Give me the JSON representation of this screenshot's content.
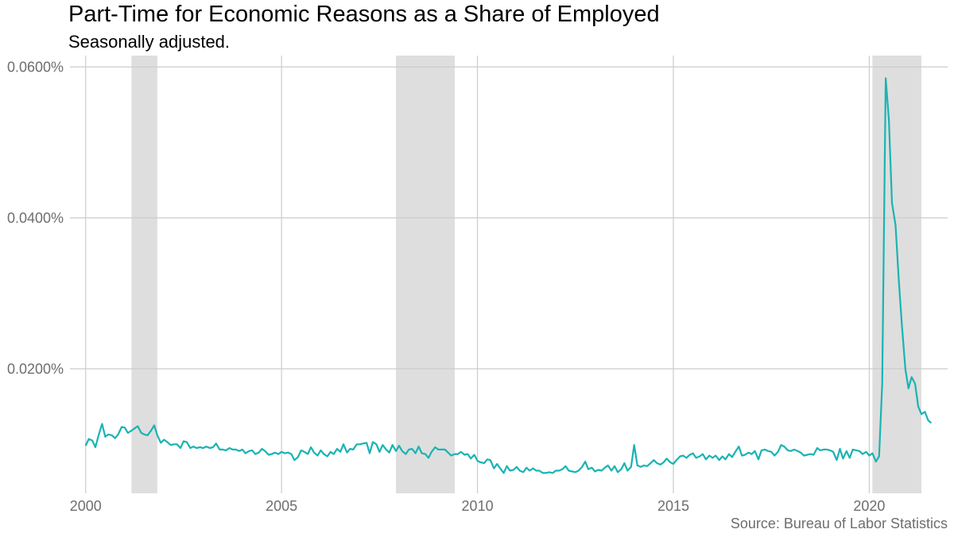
{
  "chart_data": {
    "type": "line",
    "title": "Part-Time for Economic Reasons as a Share of Employed",
    "subtitle": "Seasonally adjusted.",
    "caption": "Source: Bureau of Labor Statistics",
    "xlabel": "",
    "ylabel": "",
    "xlim": [
      1999.6,
      2022.0
    ],
    "ylim": [
      0.0035,
      0.0615
    ],
    "x_ticks": [
      2000,
      2005,
      2010,
      2015,
      2020
    ],
    "y_ticks": [
      0.02,
      0.04,
      0.06
    ],
    "y_tick_labels": [
      "0.0200%",
      "0.0400%",
      "0.0600%"
    ],
    "grid": true,
    "recession_shading": [
      [
        2001.17,
        2001.83
      ],
      [
        2007.92,
        2009.42
      ],
      [
        2020.08,
        2021.33
      ]
    ],
    "series": [
      {
        "color": "#1ab3b3",
        "points": [
          [
            2000.0,
            0.0098
          ],
          [
            2000.08,
            0.0107
          ],
          [
            2000.17,
            0.0105
          ],
          [
            2000.25,
            0.0096
          ],
          [
            2000.33,
            0.0112
          ],
          [
            2000.42,
            0.0127
          ],
          [
            2000.5,
            0.011
          ],
          [
            2000.58,
            0.0113
          ],
          [
            2000.67,
            0.0112
          ],
          [
            2000.75,
            0.0108
          ],
          [
            2000.83,
            0.0113
          ],
          [
            2000.92,
            0.0123
          ],
          [
            2001.0,
            0.0122
          ],
          [
            2001.08,
            0.0115
          ],
          [
            2001.17,
            0.0118
          ],
          [
            2001.25,
            0.0121
          ],
          [
            2001.33,
            0.0124
          ],
          [
            2001.42,
            0.0115
          ],
          [
            2001.5,
            0.0113
          ],
          [
            2001.58,
            0.0112
          ],
          [
            2001.67,
            0.0118
          ],
          [
            2001.75,
            0.0125
          ],
          [
            2001.83,
            0.0112
          ],
          [
            2001.92,
            0.0102
          ],
          [
            2002.0,
            0.0106
          ],
          [
            2002.08,
            0.0103
          ],
          [
            2002.17,
            0.0099
          ],
          [
            2002.25,
            0.01
          ],
          [
            2002.33,
            0.01
          ],
          [
            2002.42,
            0.0095
          ],
          [
            2002.5,
            0.0104
          ],
          [
            2002.58,
            0.0103
          ],
          [
            2002.67,
            0.0095
          ],
          [
            2002.75,
            0.0097
          ],
          [
            2002.83,
            0.0095
          ],
          [
            2002.92,
            0.0096
          ],
          [
            2003.0,
            0.0095
          ],
          [
            2003.08,
            0.0097
          ],
          [
            2003.17,
            0.0095
          ],
          [
            2003.25,
            0.0096
          ],
          [
            2003.33,
            0.0101
          ],
          [
            2003.42,
            0.0093
          ],
          [
            2003.5,
            0.0093
          ],
          [
            2003.58,
            0.0092
          ],
          [
            2003.67,
            0.0095
          ],
          [
            2003.75,
            0.0093
          ],
          [
            2003.83,
            0.0093
          ],
          [
            2003.92,
            0.0091
          ],
          [
            2004.0,
            0.0093
          ],
          [
            2004.08,
            0.0088
          ],
          [
            2004.17,
            0.0091
          ],
          [
            2004.25,
            0.0092
          ],
          [
            2004.33,
            0.0087
          ],
          [
            2004.42,
            0.0089
          ],
          [
            2004.5,
            0.0094
          ],
          [
            2004.58,
            0.0091
          ],
          [
            2004.67,
            0.0086
          ],
          [
            2004.75,
            0.0087
          ],
          [
            2004.83,
            0.0089
          ],
          [
            2004.92,
            0.0087
          ],
          [
            2005.0,
            0.009
          ],
          [
            2005.08,
            0.0088
          ],
          [
            2005.17,
            0.0089
          ],
          [
            2005.25,
            0.0087
          ],
          [
            2005.33,
            0.0079
          ],
          [
            2005.42,
            0.0083
          ],
          [
            2005.5,
            0.0092
          ],
          [
            2005.58,
            0.009
          ],
          [
            2005.67,
            0.0087
          ],
          [
            2005.75,
            0.0096
          ],
          [
            2005.83,
            0.0089
          ],
          [
            2005.92,
            0.0085
          ],
          [
            2006.0,
            0.0092
          ],
          [
            2006.08,
            0.0087
          ],
          [
            2006.17,
            0.0084
          ],
          [
            2006.25,
            0.009
          ],
          [
            2006.33,
            0.0087
          ],
          [
            2006.42,
            0.0094
          ],
          [
            2006.5,
            0.009
          ],
          [
            2006.58,
            0.01
          ],
          [
            2006.67,
            0.0089
          ],
          [
            2006.75,
            0.0094
          ],
          [
            2006.83,
            0.0093
          ],
          [
            2006.92,
            0.01
          ],
          [
            2007.0,
            0.01
          ],
          [
            2007.08,
            0.0101
          ],
          [
            2007.17,
            0.0102
          ],
          [
            2007.25,
            0.0088
          ],
          [
            2007.33,
            0.0103
          ],
          [
            2007.42,
            0.01
          ],
          [
            2007.5,
            0.009
          ],
          [
            2007.58,
            0.0099
          ],
          [
            2007.67,
            0.0093
          ],
          [
            2007.75,
            0.0089
          ],
          [
            2007.83,
            0.0099
          ],
          [
            2007.92,
            0.0091
          ],
          [
            2008.0,
            0.0098
          ],
          [
            2008.08,
            0.0091
          ],
          [
            2008.17,
            0.0087
          ],
          [
            2008.25,
            0.0093
          ],
          [
            2008.33,
            0.0094
          ],
          [
            2008.42,
            0.0088
          ],
          [
            2008.5,
            0.0097
          ],
          [
            2008.58,
            0.0088
          ],
          [
            2008.67,
            0.0087
          ],
          [
            2008.75,
            0.0082
          ],
          [
            2008.83,
            0.009
          ],
          [
            2008.92,
            0.0096
          ],
          [
            2009.0,
            0.0093
          ],
          [
            2009.08,
            0.0093
          ],
          [
            2009.17,
            0.0093
          ],
          [
            2009.25,
            0.0089
          ],
          [
            2009.33,
            0.0085
          ],
          [
            2009.42,
            0.0087
          ],
          [
            2009.5,
            0.0087
          ],
          [
            2009.58,
            0.009
          ],
          [
            2009.67,
            0.0086
          ],
          [
            2009.75,
            0.0087
          ],
          [
            2009.83,
            0.0081
          ],
          [
            2009.92,
            0.0086
          ],
          [
            2010.0,
            0.0078
          ],
          [
            2010.08,
            0.0076
          ],
          [
            2010.17,
            0.0075
          ],
          [
            2010.25,
            0.008
          ],
          [
            2010.33,
            0.0079
          ],
          [
            2010.42,
            0.0068
          ],
          [
            2010.5,
            0.0074
          ],
          [
            2010.58,
            0.0068
          ],
          [
            2010.67,
            0.0062
          ],
          [
            2010.75,
            0.0071
          ],
          [
            2010.83,
            0.0065
          ],
          [
            2010.92,
            0.0066
          ],
          [
            2011.0,
            0.007
          ],
          [
            2011.08,
            0.0065
          ],
          [
            2011.17,
            0.0063
          ],
          [
            2011.25,
            0.0069
          ],
          [
            2011.33,
            0.0065
          ],
          [
            2011.42,
            0.0068
          ],
          [
            2011.5,
            0.0065
          ],
          [
            2011.58,
            0.0065
          ],
          [
            2011.67,
            0.0062
          ],
          [
            2011.75,
            0.0062
          ],
          [
            2011.83,
            0.0063
          ],
          [
            2011.92,
            0.0062
          ],
          [
            2012.0,
            0.0065
          ],
          [
            2012.08,
            0.0065
          ],
          [
            2012.17,
            0.0067
          ],
          [
            2012.25,
            0.0071
          ],
          [
            2012.33,
            0.0065
          ],
          [
            2012.42,
            0.0064
          ],
          [
            2012.5,
            0.0063
          ],
          [
            2012.58,
            0.0065
          ],
          [
            2012.67,
            0.007
          ],
          [
            2012.75,
            0.0077
          ],
          [
            2012.83,
            0.0067
          ],
          [
            2012.92,
            0.0069
          ],
          [
            2013.0,
            0.0064
          ],
          [
            2013.08,
            0.0066
          ],
          [
            2013.17,
            0.0065
          ],
          [
            2013.25,
            0.0069
          ],
          [
            2013.33,
            0.0072
          ],
          [
            2013.42,
            0.0065
          ],
          [
            2013.5,
            0.0071
          ],
          [
            2013.58,
            0.0063
          ],
          [
            2013.67,
            0.0067
          ],
          [
            2013.75,
            0.0075
          ],
          [
            2013.83,
            0.0065
          ],
          [
            2013.92,
            0.007
          ],
          [
            2014.0,
            0.0099
          ],
          [
            2014.08,
            0.0072
          ],
          [
            2014.17,
            0.007
          ],
          [
            2014.25,
            0.0072
          ],
          [
            2014.33,
            0.0071
          ],
          [
            2014.42,
            0.0075
          ],
          [
            2014.5,
            0.0079
          ],
          [
            2014.58,
            0.0075
          ],
          [
            2014.67,
            0.0073
          ],
          [
            2014.75,
            0.0076
          ],
          [
            2014.83,
            0.0081
          ],
          [
            2014.92,
            0.0076
          ],
          [
            2015.0,
            0.0074
          ],
          [
            2015.08,
            0.0079
          ],
          [
            2015.17,
            0.0084
          ],
          [
            2015.25,
            0.0085
          ],
          [
            2015.33,
            0.0082
          ],
          [
            2015.42,
            0.0086
          ],
          [
            2015.5,
            0.0088
          ],
          [
            2015.58,
            0.0082
          ],
          [
            2015.67,
            0.0084
          ],
          [
            2015.75,
            0.0087
          ],
          [
            2015.83,
            0.008
          ],
          [
            2015.92,
            0.0085
          ],
          [
            2016.0,
            0.0082
          ],
          [
            2016.08,
            0.0085
          ],
          [
            2016.17,
            0.0079
          ],
          [
            2016.25,
            0.0084
          ],
          [
            2016.33,
            0.008
          ],
          [
            2016.42,
            0.0087
          ],
          [
            2016.5,
            0.0083
          ],
          [
            2016.58,
            0.009
          ],
          [
            2016.67,
            0.0097
          ],
          [
            2016.75,
            0.0085
          ],
          [
            2016.83,
            0.0086
          ],
          [
            2016.92,
            0.0089
          ],
          [
            2017.0,
            0.0087
          ],
          [
            2017.08,
            0.0091
          ],
          [
            2017.17,
            0.008
          ],
          [
            2017.25,
            0.0092
          ],
          [
            2017.33,
            0.0093
          ],
          [
            2017.42,
            0.0091
          ],
          [
            2017.5,
            0.009
          ],
          [
            2017.58,
            0.0085
          ],
          [
            2017.67,
            0.009
          ],
          [
            2017.75,
            0.0099
          ],
          [
            2017.83,
            0.0097
          ],
          [
            2017.92,
            0.0092
          ],
          [
            2018.0,
            0.0091
          ],
          [
            2018.08,
            0.0093
          ],
          [
            2018.17,
            0.0091
          ],
          [
            2018.25,
            0.0089
          ],
          [
            2018.33,
            0.0085
          ],
          [
            2018.42,
            0.0086
          ],
          [
            2018.5,
            0.0087
          ],
          [
            2018.58,
            0.0086
          ],
          [
            2018.67,
            0.0095
          ],
          [
            2018.75,
            0.0092
          ],
          [
            2018.83,
            0.0093
          ],
          [
            2018.92,
            0.0093
          ],
          [
            2019.0,
            0.0092
          ],
          [
            2019.08,
            0.009
          ],
          [
            2019.17,
            0.0079
          ],
          [
            2019.25,
            0.0094
          ],
          [
            2019.33,
            0.0081
          ],
          [
            2019.42,
            0.0091
          ],
          [
            2019.5,
            0.0082
          ],
          [
            2019.58,
            0.0093
          ],
          [
            2019.67,
            0.0092
          ],
          [
            2019.75,
            0.0091
          ],
          [
            2019.83,
            0.0087
          ],
          [
            2019.92,
            0.009
          ],
          [
            2020.0,
            0.0085
          ],
          [
            2020.08,
            0.0088
          ],
          [
            2020.17,
            0.0077
          ],
          [
            2020.25,
            0.0084
          ],
          [
            2020.33,
            0.018
          ],
          [
            2020.42,
            0.0585
          ],
          [
            2020.5,
            0.053
          ],
          [
            2020.58,
            0.042
          ],
          [
            2020.67,
            0.039
          ],
          [
            2020.75,
            0.032
          ],
          [
            2020.83,
            0.026
          ],
          [
            2020.92,
            0.02
          ],
          [
            2021.0,
            0.0174
          ],
          [
            2021.08,
            0.0189
          ],
          [
            2021.17,
            0.018
          ],
          [
            2021.25,
            0.015
          ],
          [
            2021.33,
            0.014
          ],
          [
            2021.42,
            0.0143
          ],
          [
            2021.5,
            0.0132
          ],
          [
            2021.58,
            0.0128
          ]
        ]
      }
    ]
  }
}
